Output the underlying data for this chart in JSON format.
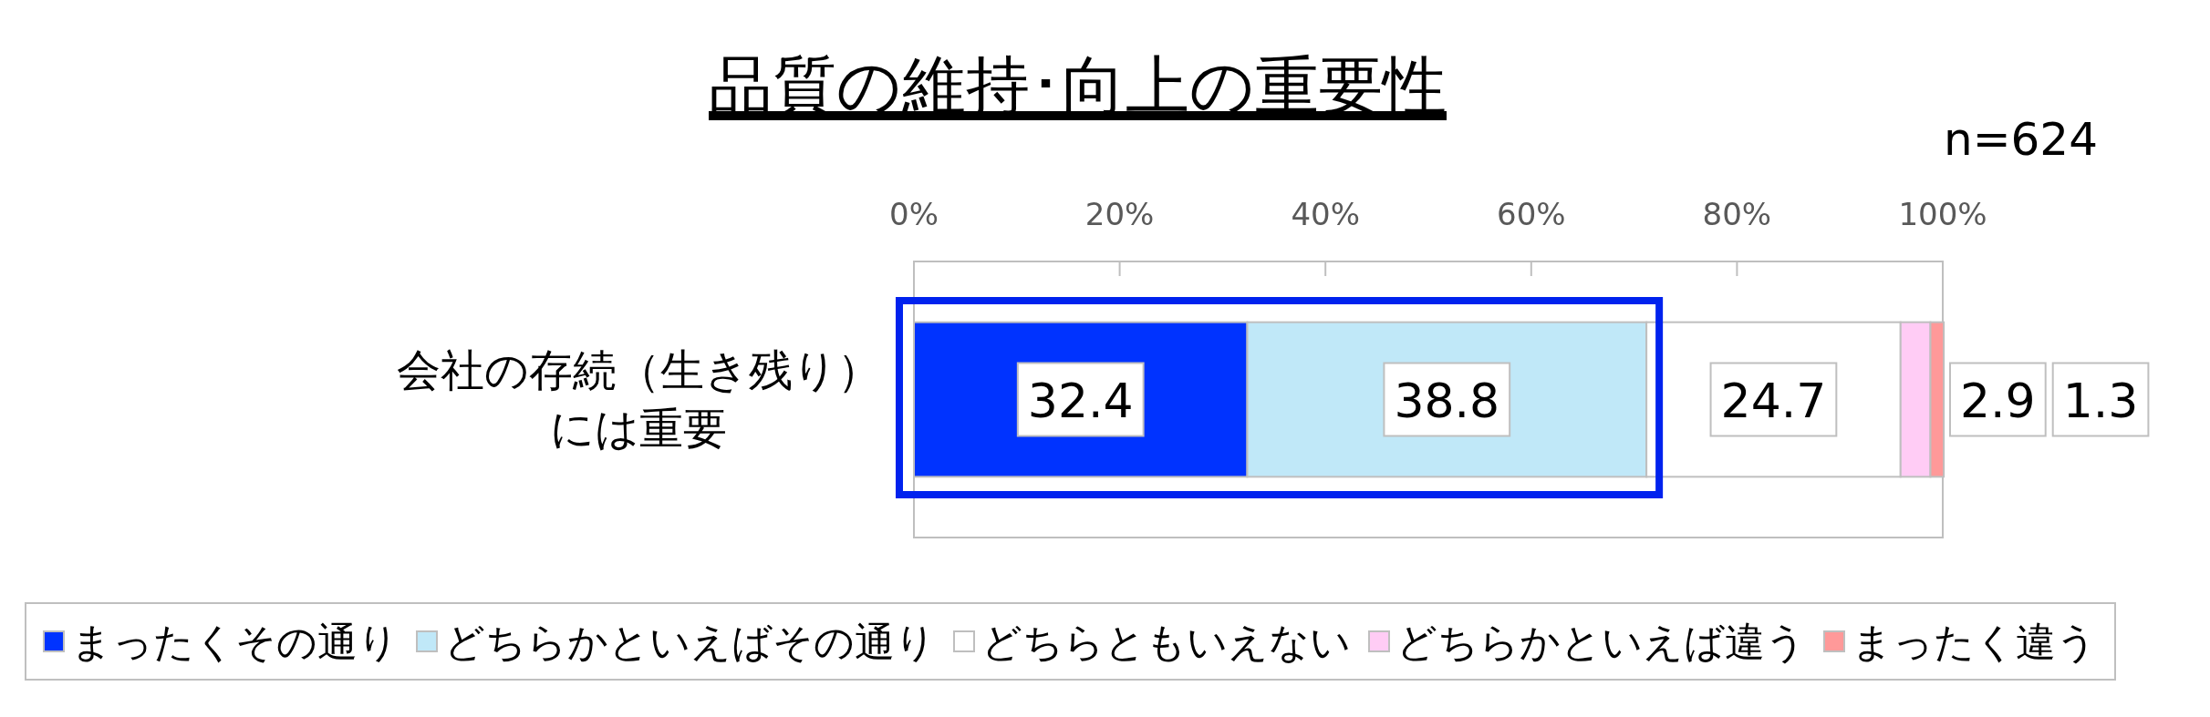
{
  "chart_data": {
    "type": "bar",
    "orientation": "horizontal",
    "stacked": true,
    "title": "品質の維持･向上の重要性",
    "categories": [
      "会社の存続（生き残り）には重要"
    ],
    "series": [
      {
        "name": "まったくその通り",
        "color": "#0033ff",
        "values": [
          32.4
        ]
      },
      {
        "name": "どちらかといえばその通り",
        "color": "#c0e8f8",
        "values": [
          38.8
        ]
      },
      {
        "name": "どちらともいえない",
        "color": "#ffffff",
        "values": [
          24.7
        ]
      },
      {
        "name": "どちらかといえば違う",
        "color": "#ffccf5",
        "values": [
          2.9
        ]
      },
      {
        "name": "まったく違う",
        "color": "#ff9999",
        "values": [
          1.3
        ]
      }
    ],
    "xlim": [
      0,
      100
    ],
    "xticks": [
      {
        "value": 0,
        "label": "0%"
      },
      {
        "value": 20,
        "label": "20%"
      },
      {
        "value": 40,
        "label": "40%"
      },
      {
        "value": 60,
        "label": "60%"
      },
      {
        "value": 80,
        "label": "80%"
      },
      {
        "value": 100,
        "label": "100%"
      }
    ],
    "data_labels": true,
    "legend": "bottom",
    "annotations": [
      "n=624"
    ]
  }
}
